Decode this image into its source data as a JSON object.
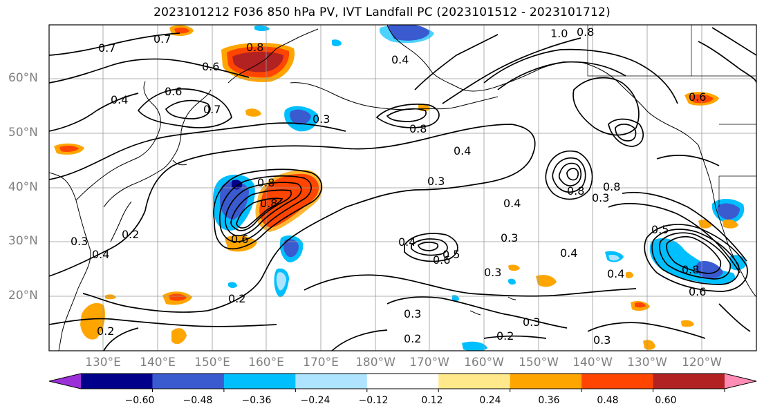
{
  "title": "2023101212 F036 850 hPa PV, IVT Landfall PC (2023101512 - 2023101712)",
  "lat_labels": [
    "60°N",
    "50°N",
    "40°N",
    "30°N",
    "20°N"
  ],
  "lon_labels": [
    "130°E",
    "140°E",
    "150°E",
    "160°E",
    "170°E",
    "180°W",
    "170°W",
    "160°W",
    "150°W",
    "140°W",
    "130°W",
    "120°W"
  ],
  "colorbar": {
    "ticks": [
      "−0.60",
      "−0.48",
      "−0.36",
      "−0.24",
      "−0.12",
      "0.12",
      "0.24",
      "0.36",
      "0.48",
      "0.60"
    ],
    "colors": [
      "#9b30d8",
      "#00008b",
      "#3a5bd0",
      "#00bfff",
      "#aee4ff",
      "#ffffff",
      "#ffe98a",
      "#ffa500",
      "#ff4500",
      "#b22222",
      "#ff8cb4"
    ]
  },
  "contour_labels": [
    "0.7",
    "0.7",
    "0.8",
    "0.6",
    "0.4",
    "0.6",
    "0.7",
    "0.8",
    "0.3",
    "0.4",
    "0.3",
    "0.8",
    "0.4",
    "0.3",
    "0.4",
    "0.3",
    "0.4",
    "0.3",
    "0.2",
    "0.3",
    "0.3",
    "0.2",
    "0.2",
    "0.2",
    "0.3",
    "0.2",
    "0.4",
    "0.6",
    "1.0",
    "0.8",
    "0.4",
    "0.6",
    "0.8",
    "0.5",
    "0.8",
    "0.6",
    "0.4",
    "0.5",
    "0.8",
    "0.8",
    "0.6",
    "0.3"
  ],
  "colors": {
    "contour": "#000000",
    "grid": "#999999",
    "coast": "#000000",
    "tick_text": "#808080"
  }
}
